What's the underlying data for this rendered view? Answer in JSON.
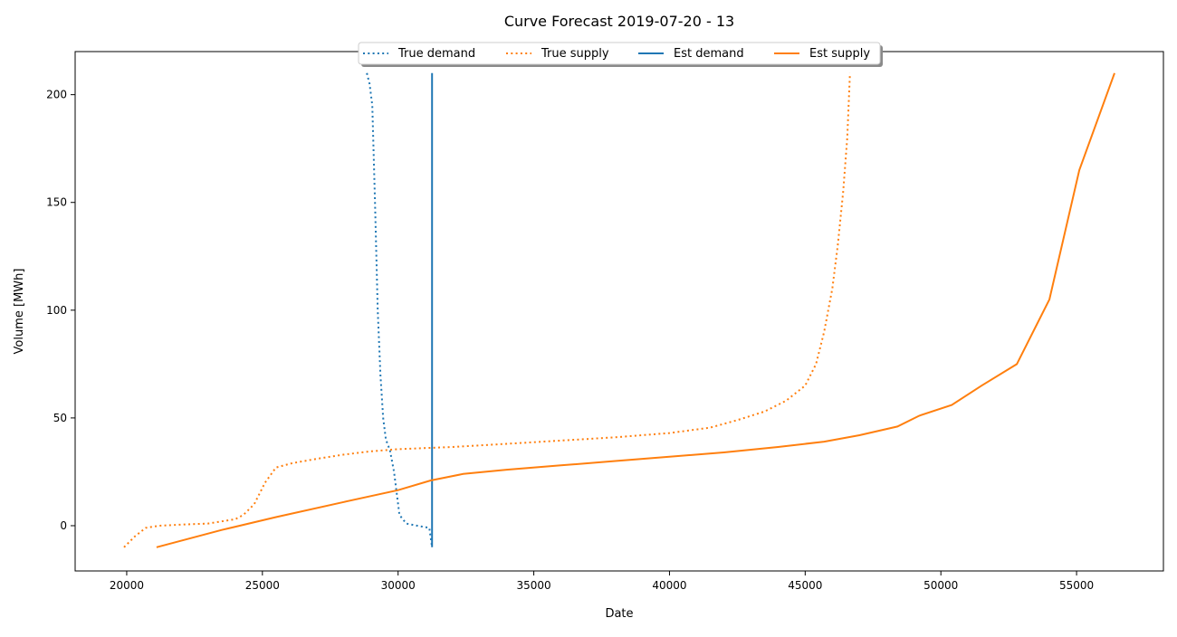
{
  "chart_data": {
    "type": "line",
    "title": "Curve Forecast 2019-07-20 - 13",
    "xlabel": "Date",
    "ylabel": "Volume [MWh]",
    "xlim": [
      18100,
      58200
    ],
    "ylim": [
      -21,
      220
    ],
    "xticks": [
      20000,
      25000,
      30000,
      35000,
      40000,
      45000,
      50000,
      55000
    ],
    "xtick_labels": [
      "20000",
      "25000",
      "30000",
      "35000",
      "40000",
      "45000",
      "50000",
      "55000"
    ],
    "yticks": [
      0,
      50,
      100,
      150,
      200
    ],
    "ytick_labels": [
      "0",
      "50",
      "100",
      "150",
      "200"
    ],
    "grid": false,
    "legend_position": "top-center",
    "series": [
      {
        "name": "True demand",
        "color": "#1f77b4",
        "style": "dotted",
        "points": [
          [
            28850,
            210
          ],
          [
            28950,
            205
          ],
          [
            29050,
            195
          ],
          [
            29150,
            150
          ],
          [
            29250,
            100
          ],
          [
            29350,
            70
          ],
          [
            29450,
            50
          ],
          [
            29550,
            40
          ],
          [
            29700,
            35
          ],
          [
            29850,
            25
          ],
          [
            29950,
            15
          ],
          [
            30050,
            5
          ],
          [
            30300,
            1
          ],
          [
            30700,
            0
          ],
          [
            31150,
            -1
          ],
          [
            31250,
            -10
          ]
        ]
      },
      {
        "name": "True supply",
        "color": "#ff7f0e",
        "style": "dotted",
        "points": [
          [
            19900,
            -10
          ],
          [
            20300,
            -5
          ],
          [
            20700,
            -1
          ],
          [
            21200,
            0
          ],
          [
            22000,
            0.5
          ],
          [
            23000,
            1
          ],
          [
            23500,
            2
          ],
          [
            24000,
            3
          ],
          [
            24300,
            5
          ],
          [
            24700,
            10
          ],
          [
            25100,
            20
          ],
          [
            25500,
            27
          ],
          [
            26100,
            29
          ],
          [
            27000,
            31
          ],
          [
            28000,
            33
          ],
          [
            29000,
            34.5
          ],
          [
            30000,
            35.5
          ],
          [
            32000,
            36.5
          ],
          [
            34000,
            38
          ],
          [
            36000,
            39.5
          ],
          [
            38000,
            41
          ],
          [
            40000,
            43
          ],
          [
            41500,
            45.5
          ],
          [
            42500,
            49
          ],
          [
            43500,
            53
          ],
          [
            44300,
            58
          ],
          [
            45000,
            65
          ],
          [
            45400,
            75
          ],
          [
            45700,
            90
          ],
          [
            46000,
            110
          ],
          [
            46200,
            130
          ],
          [
            46400,
            155
          ],
          [
            46550,
            180
          ],
          [
            46650,
            210
          ]
        ]
      },
      {
        "name": "Est demand",
        "color": "#1f77b4",
        "style": "solid",
        "points": [
          [
            31250,
            -10
          ],
          [
            31250,
            210
          ]
        ]
      },
      {
        "name": "Est supply",
        "color": "#ff7f0e",
        "style": "solid",
        "points": [
          [
            21100,
            -10
          ],
          [
            23500,
            -2
          ],
          [
            25500,
            4
          ],
          [
            28000,
            11
          ],
          [
            30000,
            16.5
          ],
          [
            31200,
            21
          ],
          [
            32400,
            24
          ],
          [
            34000,
            26
          ],
          [
            36000,
            28
          ],
          [
            38000,
            30
          ],
          [
            40000,
            32
          ],
          [
            42000,
            34
          ],
          [
            44000,
            36.5
          ],
          [
            45700,
            39
          ],
          [
            47000,
            42
          ],
          [
            48400,
            46
          ],
          [
            49200,
            51
          ],
          [
            50400,
            56
          ],
          [
            51500,
            65
          ],
          [
            52800,
            75
          ],
          [
            54000,
            105
          ],
          [
            55100,
            165
          ],
          [
            56400,
            210
          ]
        ]
      }
    ]
  }
}
